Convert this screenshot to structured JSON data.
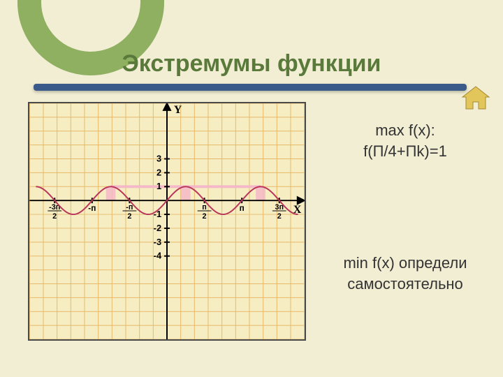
{
  "title": "Экстремумы функции",
  "home_icon_color": "#e2c55b",
  "text": {
    "max_label": "max f(x):",
    "max_value": "f(П/4+Пk)=1",
    "min_label": "min f(x) определи",
    "min_note": "самостоятельно"
  },
  "chart": {
    "type": "line",
    "background_color": "#f6eec2",
    "border_color": "#4a4a4a",
    "grid": {
      "color": "#e7b96a",
      "cols": 20,
      "rows": 17
    },
    "axes": {
      "color": "#000000",
      "y_label": "Y",
      "x_label": "X",
      "origin_col": 10,
      "x_axis_row_from_top": 7,
      "y_ticks": [
        {
          "v": 3,
          "label": "3"
        },
        {
          "v": 2,
          "label": "2"
        },
        {
          "v": 1,
          "label": "1"
        },
        {
          "v": -1,
          "label": "-1"
        },
        {
          "v": -2,
          "label": "-2"
        },
        {
          "v": -3,
          "label": "-3"
        },
        {
          "v": -4,
          "label": "-4"
        }
      ],
      "x_ticks_pi": [
        {
          "t": -1.5,
          "label": "-3п/2",
          "frac": true
        },
        {
          "t": -1.0,
          "label": "-п",
          "frac": false
        },
        {
          "t": -0.5,
          "label": "-п/2",
          "frac": true
        },
        {
          "t": 0.5,
          "label": "п/2",
          "frac": true
        },
        {
          "t": 1.0,
          "label": "п",
          "frac": false
        },
        {
          "t": 1.5,
          "label": "3п/2",
          "frac": true
        }
      ]
    },
    "curve": {
      "function": "sin(2x)",
      "amplitude": 1,
      "period_pi_units": 1,
      "x_range_pi_units": [
        -1.75,
        1.75
      ],
      "color": "#b8365a",
      "width": 2
    },
    "highlight": {
      "bars_color": "#f4b8c8",
      "bars_opacity": 0.85,
      "connector_color": "#f4b8c8",
      "maxima_pi_units": [
        -0.75,
        0.25,
        1.25
      ]
    }
  }
}
